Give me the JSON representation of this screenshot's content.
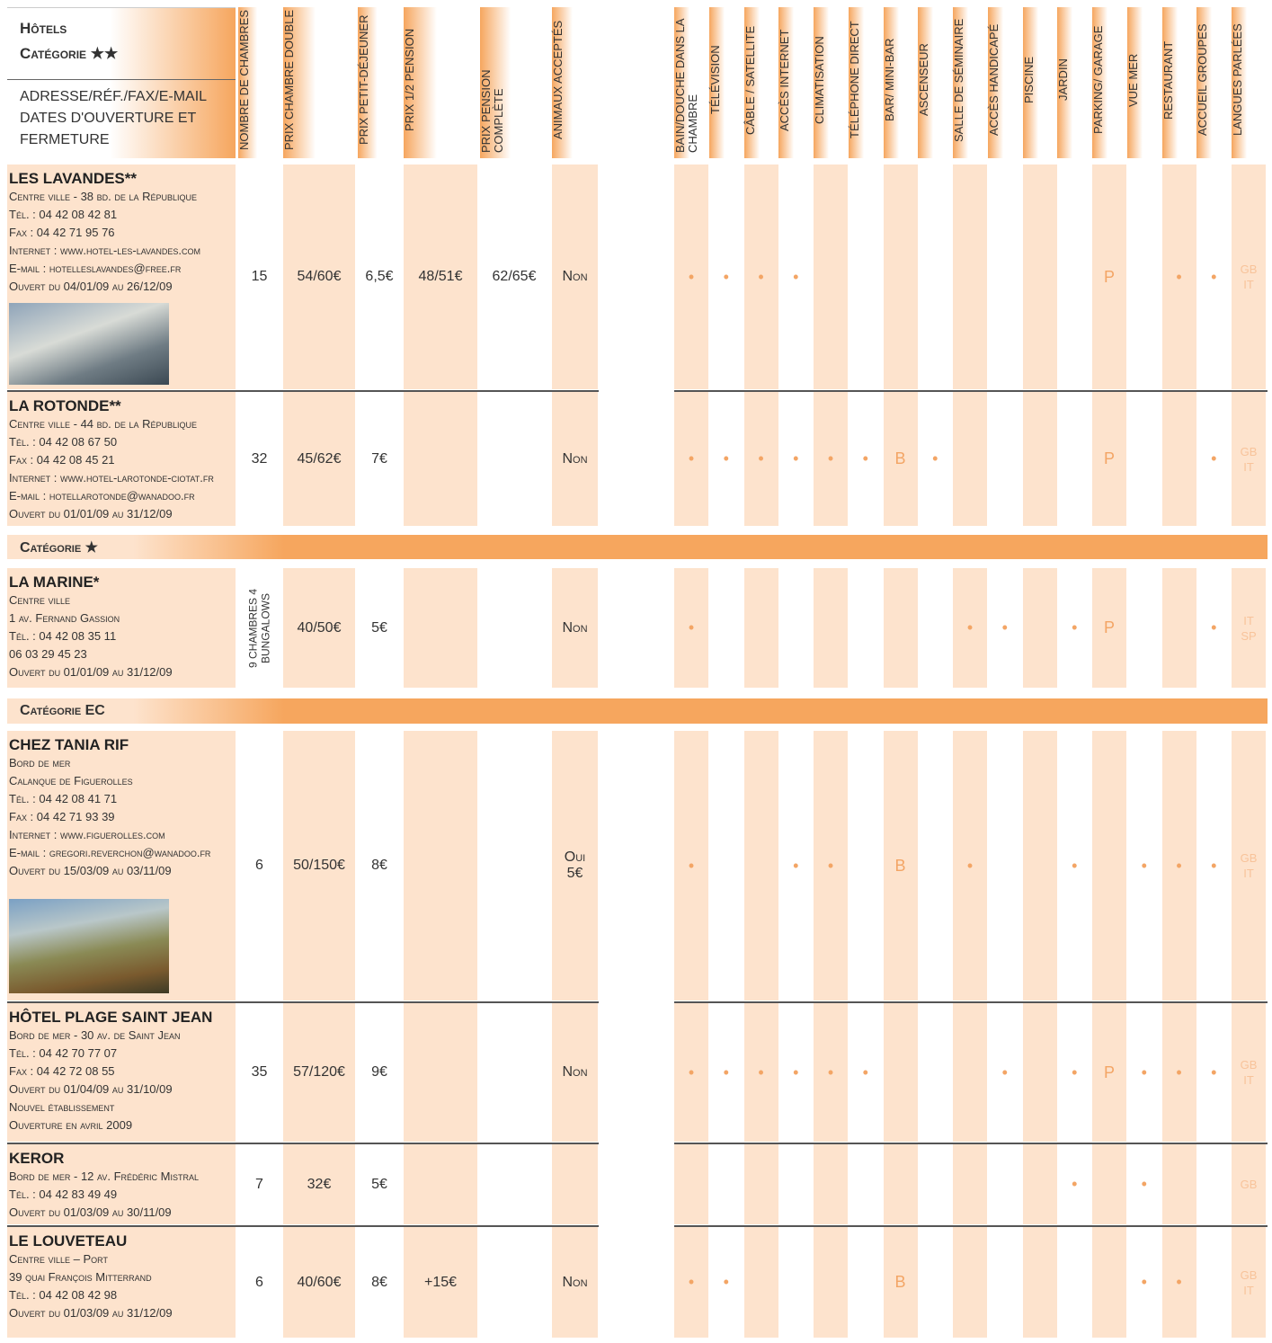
{
  "header": {
    "title": "Hôtels",
    "category": "Catégorie ★★",
    "address_label": "Adresse/Réf./Fax/E-mail Dates d'ouverture et fermeture"
  },
  "columns": [
    "Nombre de chambres",
    "Prix chambre double",
    "Prix petit-déjeuner",
    "Prix 1/2 pension",
    "Prix pension complète",
    "Animaux acceptés"
  ],
  "amenities": [
    "Bain/douche dans la chambre",
    "Télévision",
    "Câble / satellite",
    "Accès internet",
    "Climatisation",
    "Téléphone direct",
    "Bar/ mini-bar",
    "Ascenseur",
    "Salle de séminaire",
    "Accès handicapé",
    "Piscine",
    "Jardin",
    "Parking/ garage",
    "Vue mer",
    "Restaurant",
    "Accueil groupes",
    "Langues parlées"
  ],
  "sections": [
    {
      "hotels": [
        {
          "name": "LES LAVANDES**",
          "lines": [
            "Centre ville - 38 bd. de la République",
            "Tél. : 04 42 08 42 81",
            "Fax : 04 42 71 95 76",
            "Internet : www.hotel-les-lavandes.com",
            "E-mail : hotelleslavandes@free.fr",
            "Ouvert du 04/01/09 au 26/12/09"
          ],
          "rooms": 15,
          "double": "54/60€",
          "breakfast": "6,5€",
          "half_board": "48/51€",
          "full_board": "62/65€",
          "animals": "Non",
          "features": [
            "•",
            "•",
            "•",
            "•",
            null,
            null,
            null,
            null,
            null,
            null,
            null,
            null,
            "P",
            null,
            "•",
            "•",
            "GB IT"
          ]
        },
        {
          "name": "LA ROTONDE**",
          "lines": [
            "Centre ville - 44 bd. de la République",
            "Tél. : 04 42 08 67 50",
            "Fax : 04 42 08 45 21",
            "Internet : www.hotel-larotonde-ciotat.fr",
            "E-mail : hotellarotonde@wanadoo.fr",
            "Ouvert du 01/01/09 au 31/12/09"
          ],
          "rooms": 32,
          "double": "45/62€",
          "breakfast": "7€",
          "half_board": null,
          "full_board": null,
          "animals": "Non",
          "features": [
            "•",
            "•",
            "•",
            "•",
            "•",
            "•",
            "B",
            "•",
            null,
            null,
            null,
            null,
            "P",
            null,
            null,
            "•",
            "GB IT"
          ]
        }
      ]
    },
    {
      "title": "Catégorie ★",
      "hotels": [
        {
          "name": "LA MARINE*",
          "lines": [
            "Centre ville",
            "1 av. Fernand Gassion",
            "Tél. : 04 42 08 35 11",
            "06 03 29 45 23",
            "Ouvert du 01/01/09 au 31/12/09"
          ],
          "rooms": "9 chambres 4 bungalows",
          "double": "40/50€",
          "breakfast": "5€",
          "half_board": null,
          "full_board": null,
          "animals": "Non",
          "features": [
            "•",
            null,
            null,
            null,
            null,
            null,
            null,
            null,
            "•",
            "•",
            null,
            "•",
            "P",
            null,
            null,
            "•",
            "IT SP"
          ]
        }
      ]
    },
    {
      "title": "Catégorie EC",
      "hotels": [
        {
          "name": "CHEZ TANIA RIF",
          "lines": [
            "Bord de mer",
            "Calanque de Figuerolles",
            "Tél. : 04 42 08 41 71",
            "Fax : 04 42 71 93 39",
            "Internet : www.figuerolles.com",
            "E-mail : gregori.reverchon@wanadoo.fr",
            "Ouvert du 15/03/09 au 03/11/09"
          ],
          "rooms": 6,
          "double": "50/150€",
          "breakfast": "8€",
          "half_board": null,
          "full_board": null,
          "animals": "Oui 5€",
          "features": [
            "•",
            null,
            null,
            "•",
            "•",
            null,
            "B",
            null,
            "•",
            null,
            null,
            "•",
            null,
            "•",
            "•",
            "•",
            "GB IT"
          ]
        },
        {
          "name": "HÔTEL PLAGE SAINT JEAN",
          "lines": [
            "Bord de mer - 30 av. de Saint Jean",
            "Tél. : 04 42 70 77 07",
            "Fax : 04 42 72 08 55",
            "Ouvert du 01/04/09 au 31/10/09",
            "Nouvel établissement",
            "Ouverture en avril 2009"
          ],
          "rooms": 35,
          "double": "57/120€",
          "breakfast": "9€",
          "half_board": null,
          "full_board": null,
          "animals": "Non",
          "features": [
            "•",
            "•",
            "•",
            "•",
            "•",
            "•",
            null,
            null,
            null,
            "•",
            null,
            "•",
            "P",
            "•",
            "•",
            "•",
            "GB IT"
          ]
        },
        {
          "name": "KEROR",
          "lines": [
            "Bord de mer - 12 av. Frédéric Mistral",
            "Tél. : 04 42 83 49 49",
            "Ouvert du 01/03/09 au 30/11/09"
          ],
          "rooms": 7,
          "double": "32€",
          "breakfast": "5€",
          "half_board": null,
          "full_board": null,
          "animals": null,
          "features": [
            null,
            null,
            null,
            null,
            null,
            null,
            null,
            null,
            null,
            null,
            null,
            "•",
            null,
            "•",
            null,
            null,
            "GB"
          ]
        },
        {
          "name": "LE LOUVETEAU",
          "lines": [
            "Centre ville – Port",
            "39 quai François Mitterrand",
            "Tél. : 04 42 08 42 98",
            "Ouvert du 01/03/09 au 31/12/09"
          ],
          "rooms": 6,
          "double": "40/60€",
          "breakfast": "8€",
          "half_board": "+15€",
          "full_board": null,
          "animals": "Non",
          "features": [
            "•",
            "•",
            null,
            null,
            null,
            null,
            "B",
            null,
            null,
            null,
            null,
            null,
            null,
            "•",
            "•",
            null,
            "GB IT"
          ]
        }
      ]
    }
  ]
}
